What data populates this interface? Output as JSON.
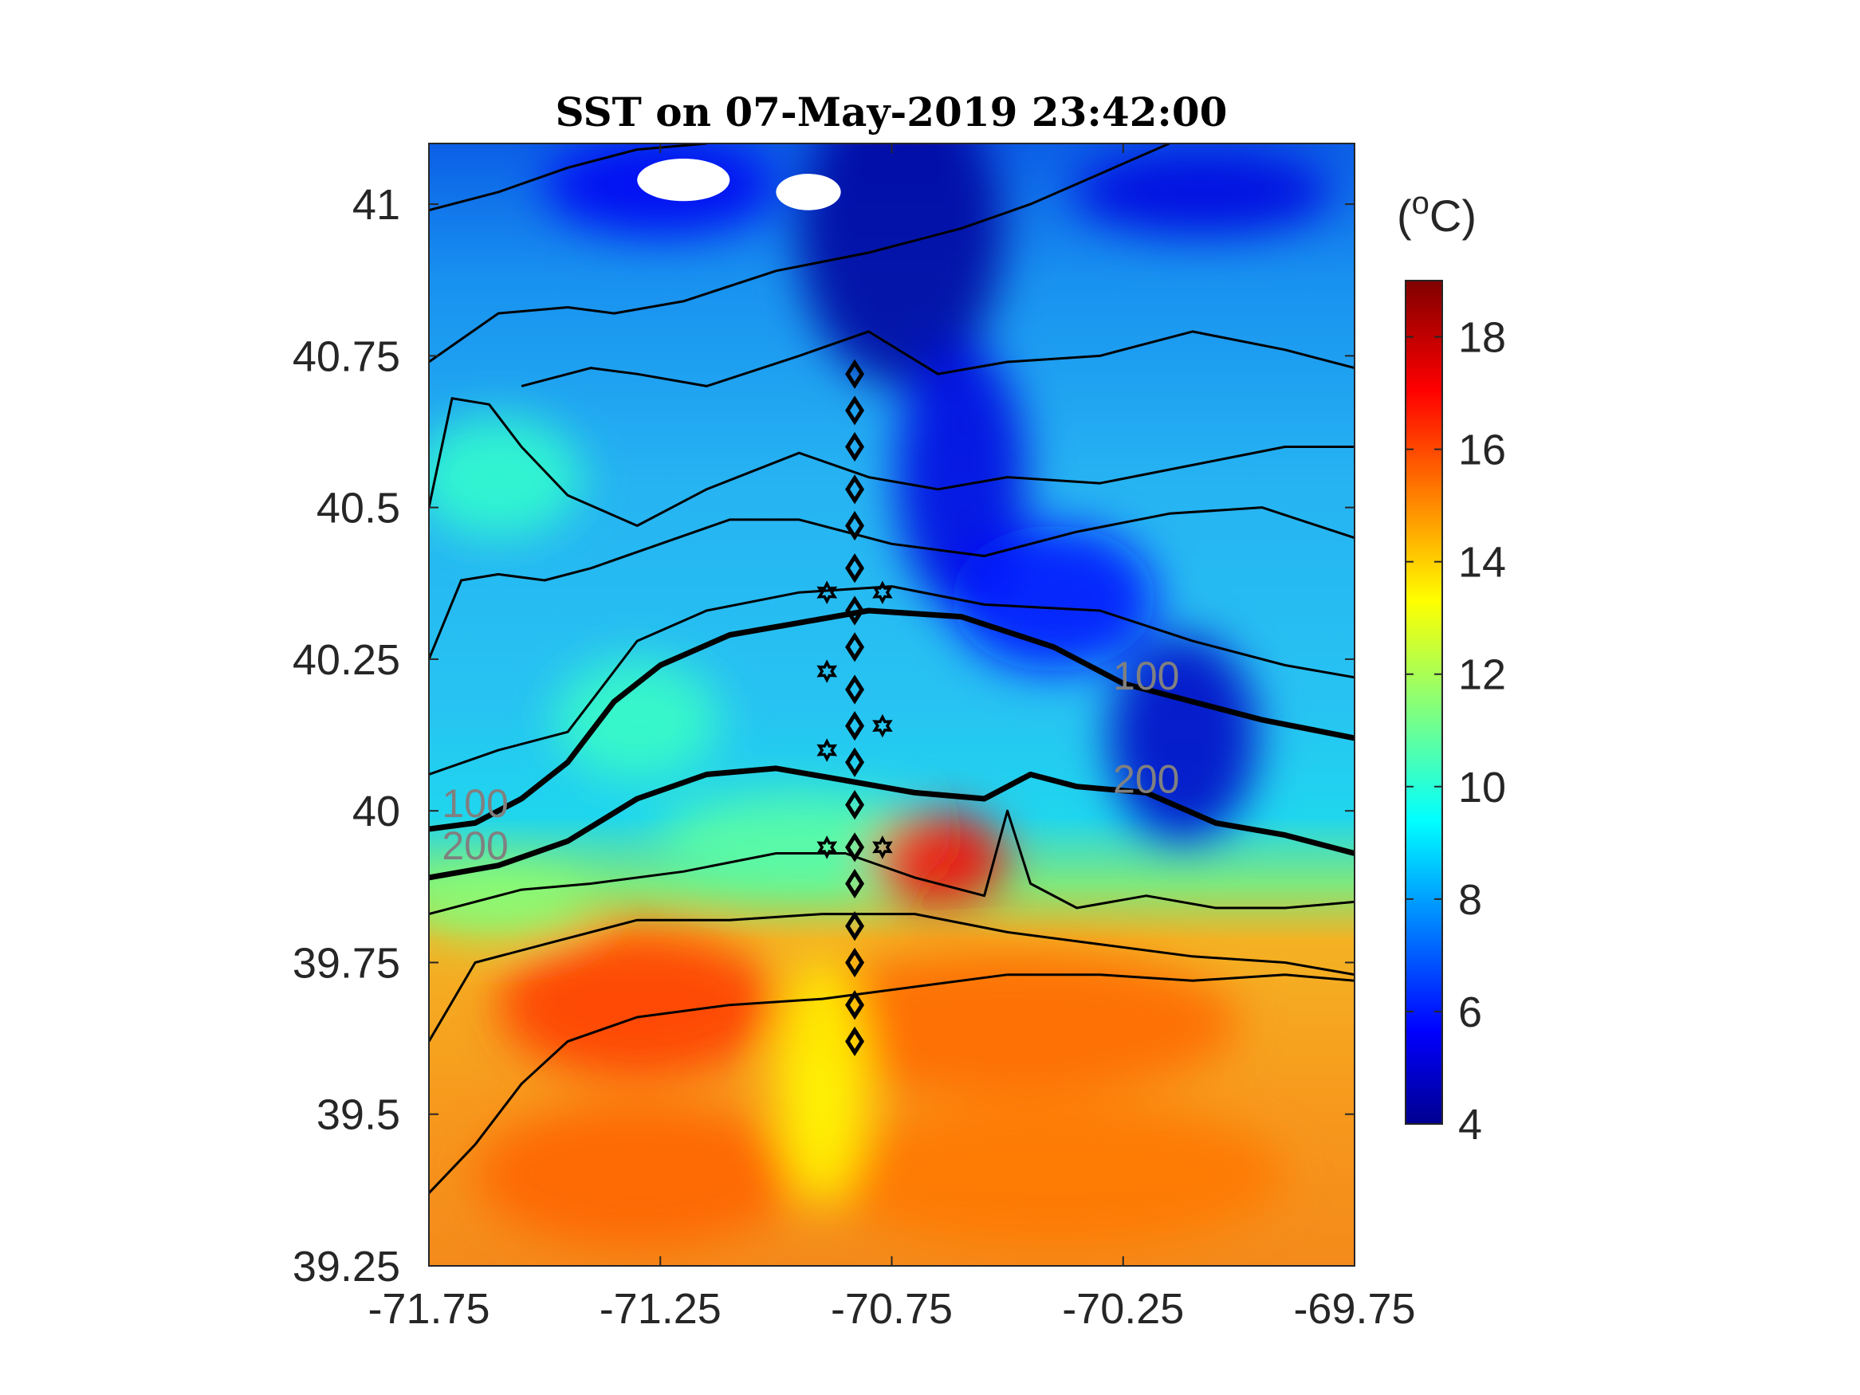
{
  "chart_data": {
    "type": "heatmap",
    "title": "SST on 07-May-2019 23:42:00",
    "xlabel": "",
    "ylabel": "",
    "xlim": [
      -71.75,
      -69.75
    ],
    "ylim": [
      39.25,
      41.1
    ],
    "x_ticks": [
      -71.75,
      -71.25,
      -70.75,
      -70.25,
      -69.75
    ],
    "x_tick_labels": [
      "-71.75",
      "-71.25",
      "-70.75",
      "-70.25",
      "-69.75"
    ],
    "y_ticks": [
      39.25,
      39.5,
      39.75,
      40,
      40.25,
      40.5,
      40.75,
      41
    ],
    "y_tick_labels": [
      "39.25",
      "39.5",
      "39.75",
      "40",
      "40.25",
      "40.5",
      "40.75",
      "41"
    ],
    "colorbar": {
      "label": "(oC)",
      "label_base": "(",
      "label_sup": "o",
      "label_unit": "C)",
      "limits": [
        4,
        19
      ],
      "ticks": [
        4,
        6,
        8,
        10,
        12,
        14,
        16,
        18
      ],
      "tick_labels": [
        "4",
        "6",
        "8",
        "10",
        "12",
        "14",
        "16",
        "18"
      ],
      "colormap": "jet"
    },
    "isobaths": [
      {
        "depth": 100,
        "label": "100",
        "label_at": [
          [
            -71.65,
            39.99
          ],
          [
            -70.2,
            40.2
          ]
        ],
        "points": [
          [
            -71.75,
            39.97
          ],
          [
            -71.65,
            39.98
          ],
          [
            -71.55,
            40.02
          ],
          [
            -71.45,
            40.08
          ],
          [
            -71.35,
            40.18
          ],
          [
            -71.25,
            40.24
          ],
          [
            -71.1,
            40.29
          ],
          [
            -70.95,
            40.31
          ],
          [
            -70.8,
            40.33
          ],
          [
            -70.6,
            40.32
          ],
          [
            -70.4,
            40.27
          ],
          [
            -70.25,
            40.21
          ],
          [
            -70.1,
            40.18
          ],
          [
            -69.95,
            40.15
          ],
          [
            -69.75,
            40.12
          ]
        ]
      },
      {
        "depth": 200,
        "label": "200",
        "label_at": [
          [
            -71.65,
            39.92
          ],
          [
            -70.2,
            40.03
          ]
        ],
        "points": [
          [
            -71.75,
            39.89
          ],
          [
            -71.6,
            39.91
          ],
          [
            -71.45,
            39.95
          ],
          [
            -71.3,
            40.02
          ],
          [
            -71.15,
            40.06
          ],
          [
            -71.0,
            40.07
          ],
          [
            -70.85,
            40.05
          ],
          [
            -70.7,
            40.03
          ],
          [
            -70.55,
            40.02
          ],
          [
            -70.45,
            40.06
          ],
          [
            -70.35,
            40.04
          ],
          [
            -70.2,
            40.03
          ],
          [
            -70.05,
            39.98
          ],
          [
            -69.9,
            39.96
          ],
          [
            -69.75,
            39.93
          ]
        ]
      }
    ],
    "thin_contours": [
      [
        [
          -71.75,
          40.99
        ],
        [
          -71.6,
          41.02
        ],
        [
          -71.45,
          41.06
        ],
        [
          -71.3,
          41.09
        ],
        [
          -71.15,
          41.1
        ]
      ],
      [
        [
          -71.75,
          40.74
        ],
        [
          -71.6,
          40.82
        ],
        [
          -71.45,
          40.83
        ],
        [
          -71.35,
          40.82
        ],
        [
          -71.2,
          40.84
        ],
        [
          -71.0,
          40.89
        ],
        [
          -70.8,
          40.92
        ],
        [
          -70.6,
          40.96
        ],
        [
          -70.45,
          41.0
        ],
        [
          -70.3,
          41.05
        ],
        [
          -70.15,
          41.1
        ]
      ],
      [
        [
          -71.55,
          40.7
        ],
        [
          -71.4,
          40.73
        ],
        [
          -71.3,
          40.72
        ],
        [
          -71.15,
          40.7
        ],
        [
          -70.95,
          40.75
        ],
        [
          -70.8,
          40.79
        ],
        [
          -70.65,
          40.72
        ],
        [
          -70.5,
          40.74
        ],
        [
          -70.3,
          40.75
        ],
        [
          -70.1,
          40.79
        ],
        [
          -69.9,
          40.76
        ],
        [
          -69.75,
          40.73
        ]
      ],
      [
        [
          -71.75,
          40.5
        ],
        [
          -71.7,
          40.68
        ],
        [
          -71.62,
          40.67
        ],
        [
          -71.55,
          40.6
        ],
        [
          -71.45,
          40.52
        ],
        [
          -71.3,
          40.47
        ],
        [
          -71.15,
          40.53
        ],
        [
          -70.95,
          40.59
        ],
        [
          -70.8,
          40.55
        ],
        [
          -70.65,
          40.53
        ],
        [
          -70.5,
          40.55
        ],
        [
          -70.3,
          40.54
        ],
        [
          -70.1,
          40.57
        ],
        [
          -69.9,
          40.6
        ],
        [
          -69.75,
          40.6
        ]
      ],
      [
        [
          -71.75,
          40.25
        ],
        [
          -71.68,
          40.38
        ],
        [
          -71.6,
          40.39
        ],
        [
          -71.5,
          40.38
        ],
        [
          -71.4,
          40.4
        ],
        [
          -71.25,
          40.44
        ],
        [
          -71.1,
          40.48
        ],
        [
          -70.95,
          40.48
        ],
        [
          -70.75,
          40.44
        ],
        [
          -70.55,
          40.42
        ],
        [
          -70.35,
          40.46
        ],
        [
          -70.15,
          40.49
        ],
        [
          -69.95,
          40.5
        ],
        [
          -69.75,
          40.45
        ]
      ],
      [
        [
          -71.75,
          40.06
        ],
        [
          -71.6,
          40.1
        ],
        [
          -71.45,
          40.13
        ],
        [
          -71.38,
          40.2
        ],
        [
          -71.3,
          40.28
        ],
        [
          -71.15,
          40.33
        ],
        [
          -70.95,
          40.36
        ],
        [
          -70.75,
          40.37
        ],
        [
          -70.55,
          40.34
        ],
        [
          -70.3,
          40.33
        ],
        [
          -70.1,
          40.28
        ],
        [
          -69.9,
          40.24
        ],
        [
          -69.75,
          40.22
        ]
      ],
      [
        [
          -71.75,
          39.83
        ],
        [
          -71.55,
          39.87
        ],
        [
          -71.4,
          39.88
        ],
        [
          -71.2,
          39.9
        ],
        [
          -71.0,
          39.93
        ],
        [
          -70.85,
          39.93
        ],
        [
          -70.7,
          39.89
        ],
        [
          -70.55,
          39.86
        ],
        [
          -70.5,
          40.0
        ],
        [
          -70.45,
          39.88
        ],
        [
          -70.35,
          39.84
        ],
        [
          -70.2,
          39.86
        ],
        [
          -70.05,
          39.84
        ],
        [
          -69.9,
          39.84
        ],
        [
          -69.75,
          39.85
        ]
      ],
      [
        [
          -71.75,
          39.62
        ],
        [
          -71.65,
          39.75
        ],
        [
          -71.5,
          39.78
        ],
        [
          -71.3,
          39.82
        ],
        [
          -71.1,
          39.82
        ],
        [
          -70.9,
          39.83
        ],
        [
          -70.7,
          39.83
        ],
        [
          -70.5,
          39.8
        ],
        [
          -70.3,
          39.78
        ],
        [
          -70.1,
          39.76
        ],
        [
          -69.9,
          39.75
        ],
        [
          -69.75,
          39.73
        ]
      ],
      [
        [
          -71.75,
          39.37
        ],
        [
          -71.65,
          39.45
        ],
        [
          -71.55,
          39.55
        ],
        [
          -71.45,
          39.62
        ],
        [
          -71.3,
          39.66
        ],
        [
          -71.1,
          39.68
        ],
        [
          -70.9,
          39.69
        ],
        [
          -70.7,
          39.71
        ],
        [
          -70.5,
          39.73
        ],
        [
          -70.3,
          39.73
        ],
        [
          -70.1,
          39.72
        ],
        [
          -69.9,
          39.73
        ],
        [
          -69.75,
          39.72
        ]
      ]
    ],
    "stations_diamond": {
      "lon": -70.83,
      "lat": [
        40.72,
        40.66,
        40.6,
        40.53,
        40.47,
        40.4,
        40.33,
        40.27,
        40.2,
        40.14,
        40.08,
        40.01,
        39.94,
        39.88,
        39.81,
        39.75,
        39.68,
        39.62
      ]
    },
    "stations_star": [
      {
        "lon": -70.89,
        "lat": 40.36
      },
      {
        "lon": -70.77,
        "lat": 40.36
      },
      {
        "lon": -70.89,
        "lat": 40.23
      },
      {
        "lon": -70.77,
        "lat": 40.14
      },
      {
        "lon": -70.89,
        "lat": 40.1
      },
      {
        "lon": -70.89,
        "lat": 39.94
      },
      {
        "lon": -70.77,
        "lat": 39.94
      }
    ],
    "sst_blobs": [
      {
        "lon": -70.73,
        "lat": 40.95,
        "rx": 0.22,
        "ry": 0.25,
        "value": 4.2
      },
      {
        "lon": -70.6,
        "lat": 40.55,
        "rx": 0.14,
        "ry": 0.22,
        "value": 5.2
      },
      {
        "lon": -70.4,
        "lat": 40.35,
        "rx": 0.22,
        "ry": 0.12,
        "value": 5.8
      },
      {
        "lon": -70.12,
        "lat": 40.12,
        "rx": 0.16,
        "ry": 0.17,
        "value": 4.8
      },
      {
        "lon": -70.08,
        "lat": 41.02,
        "rx": 0.28,
        "ry": 0.07,
        "value": 5.2
      },
      {
        "lon": -71.25,
        "lat": 41.03,
        "rx": 0.25,
        "ry": 0.08,
        "value": 5.5
      },
      {
        "lon": -71.6,
        "lat": 40.55,
        "rx": 0.18,
        "ry": 0.1,
        "value": 10.2
      },
      {
        "lon": -71.3,
        "lat": 40.15,
        "rx": 0.18,
        "ry": 0.1,
        "value": 10.3
      },
      {
        "lon": -70.95,
        "lat": 39.95,
        "rx": 0.3,
        "ry": 0.08,
        "value": 10.8
      },
      {
        "lon": -70.65,
        "lat": 39.92,
        "rx": 0.15,
        "ry": 0.08,
        "value": 17.0
      },
      {
        "lon": -71.6,
        "lat": 39.85,
        "rx": 0.2,
        "ry": 0.06,
        "value": 11.5
      },
      {
        "lon": -71.3,
        "lat": 39.68,
        "rx": 0.3,
        "ry": 0.12,
        "value": 16.2
      },
      {
        "lon": -70.5,
        "lat": 39.65,
        "rx": 0.5,
        "ry": 0.12,
        "value": 15.5
      },
      {
        "lon": -71.3,
        "lat": 39.4,
        "rx": 0.35,
        "ry": 0.12,
        "value": 15.6
      },
      {
        "lon": -70.4,
        "lat": 39.4,
        "rx": 0.5,
        "ry": 0.12,
        "value": 15.3
      },
      {
        "lon": -70.9,
        "lat": 39.55,
        "rx": 0.1,
        "ry": 0.2,
        "value": 13.3
      }
    ],
    "cloud_mask": [
      {
        "lon": -71.2,
        "lat": 41.04,
        "rx": 0.1,
        "ry": 0.035
      },
      {
        "lon": -70.93,
        "lat": 41.02,
        "rx": 0.07,
        "ry": 0.03
      }
    ]
  }
}
